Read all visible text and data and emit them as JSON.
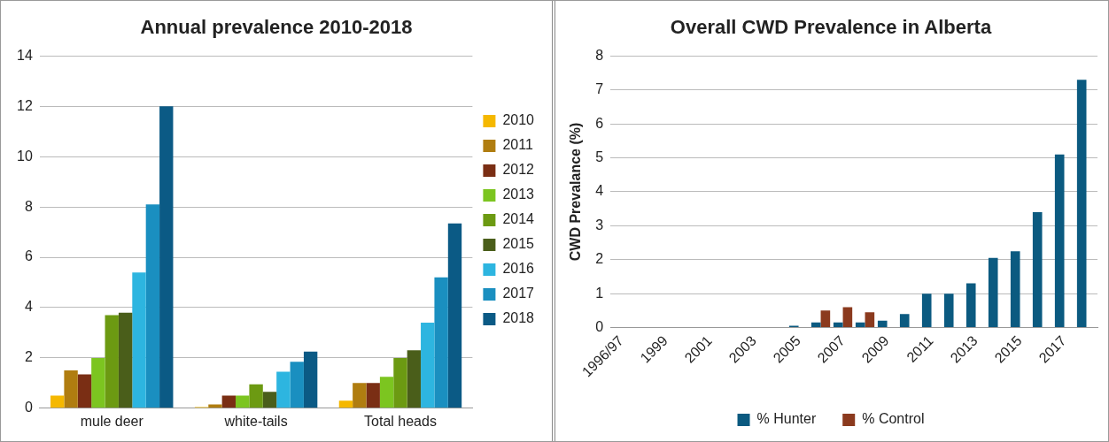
{
  "chart_data": [
    {
      "type": "bar",
      "title": "Annual prevalence 2010-2018",
      "categories": [
        "mule deer",
        "white-tails",
        "Total heads"
      ],
      "series": [
        {
          "name": "2010",
          "color": "#f5b800",
          "values": [
            0.5,
            0.05,
            0.3
          ]
        },
        {
          "name": "2011",
          "color": "#b07d10",
          "values": [
            1.5,
            0.15,
            1.0
          ]
        },
        {
          "name": "2012",
          "color": "#7a2e14",
          "values": [
            1.35,
            0.5,
            1.0
          ]
        },
        {
          "name": "2013",
          "color": "#7cc520",
          "values": [
            2.0,
            0.5,
            1.25
          ]
        },
        {
          "name": "2014",
          "color": "#6c9a12",
          "values": [
            3.7,
            0.95,
            2.0
          ]
        },
        {
          "name": "2015",
          "color": "#4a5e1a",
          "values": [
            3.8,
            0.65,
            2.3
          ]
        },
        {
          "name": "2016",
          "color": "#2db5e0",
          "values": [
            5.4,
            1.45,
            3.4
          ]
        },
        {
          "name": "2017",
          "color": "#1a8fc0",
          "values": [
            8.1,
            1.85,
            5.2
          ]
        },
        {
          "name": "2018",
          "color": "#0b5a85",
          "values": [
            12.0,
            2.25,
            7.35
          ]
        }
      ],
      "ylim": [
        0,
        14
      ],
      "yticks": [
        0,
        2,
        4,
        6,
        8,
        10,
        12,
        14
      ],
      "grid": "y",
      "legend": "right"
    },
    {
      "type": "bar",
      "title": "Overall CWD Prevalence in Alberta",
      "ylabel": "CWD Prevalance (%)",
      "categories": [
        "1996/97",
        null,
        "1999",
        null,
        "2001",
        null,
        "2003",
        null,
        "2005",
        null,
        "2007",
        null,
        "2009",
        null,
        "2011",
        null,
        "2013",
        null,
        "2015",
        null,
        "2017",
        null
      ],
      "series": [
        {
          "name": "% Hunter",
          "color": "#0b5a80",
          "values": [
            0,
            0,
            0,
            0,
            0,
            0,
            0,
            0,
            0.05,
            0.15,
            0.15,
            0.15,
            0.2,
            0.4,
            1.0,
            1.0,
            1.3,
            2.05,
            2.25,
            3.4,
            5.1,
            7.3
          ]
        },
        {
          "name": "% Control",
          "color": "#8b3a1e",
          "values": [
            null,
            null,
            null,
            null,
            null,
            null,
            null,
            null,
            null,
            0.5,
            0.6,
            0.45,
            null,
            null,
            null,
            null,
            null,
            null,
            null,
            null,
            null,
            null
          ]
        }
      ],
      "ylim": [
        0,
        8
      ],
      "yticks": [
        0,
        1,
        2,
        3,
        4,
        5,
        6,
        7,
        8
      ],
      "grid": "y",
      "legend": "bottom"
    }
  ]
}
